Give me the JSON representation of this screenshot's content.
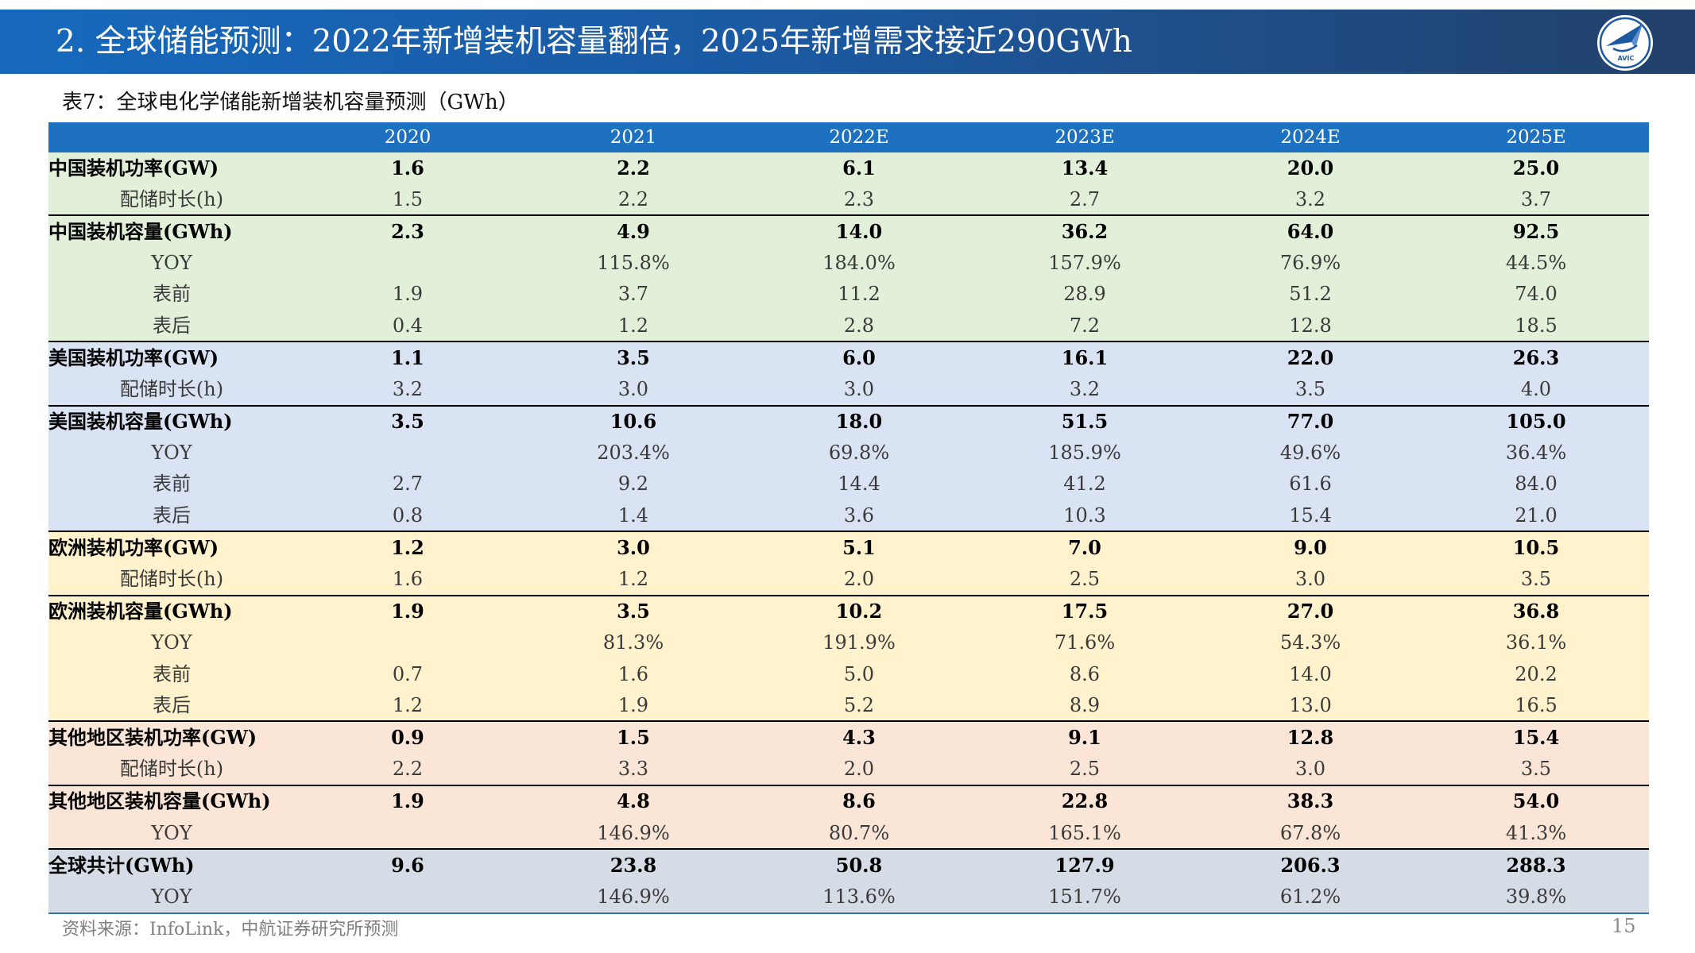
{
  "header": {
    "title": "2. 全球储能预测：2022年新增装机容量翻倍，2025年新增需求接近290GWh",
    "logo_text": "AVIC"
  },
  "caption": "表7：全球电化学储能新增装机容量预测（GWh）",
  "colors": {
    "title_bar_left": "#1669bd",
    "title_bar_right": "#22416b",
    "table_header": "#1e70c0",
    "logo": "#1b5aa3"
  },
  "table": {
    "columns": [
      "",
      "2020",
      "2021",
      "2022E",
      "2023E",
      "2024E",
      "2025E"
    ],
    "groups": [
      {
        "color": "#e2efd9",
        "rows": [
          {
            "kind": "main",
            "label": "中国装机功率(GW)",
            "values": [
              "1.6",
              "2.2",
              "6.1",
              "13.4",
              "20.0",
              "25.0"
            ]
          },
          {
            "kind": "sub",
            "label": "配储时长(h)",
            "values": [
              "1.5",
              "2.2",
              "2.3",
              "2.7",
              "3.2",
              "3.7"
            ]
          },
          {
            "kind": "main",
            "label": "中国装机容量(GWh)",
            "values": [
              "2.3",
              "4.9",
              "14.0",
              "36.2",
              "64.0",
              "92.5"
            ]
          },
          {
            "kind": "sub",
            "label": "YOY",
            "values": [
              "",
              "115.8%",
              "184.0%",
              "157.9%",
              "76.9%",
              "44.5%"
            ]
          },
          {
            "kind": "sub",
            "label": "表前",
            "values": [
              "1.9",
              "3.7",
              "11.2",
              "28.9",
              "51.2",
              "74.0"
            ]
          },
          {
            "kind": "sub",
            "label": "表后",
            "values": [
              "0.4",
              "1.2",
              "2.8",
              "7.2",
              "12.8",
              "18.5"
            ]
          }
        ]
      },
      {
        "color": "#dae3f3",
        "rows": [
          {
            "kind": "main",
            "label": "美国装机功率(GW)",
            "values": [
              "1.1",
              "3.5",
              "6.0",
              "16.1",
              "22.0",
              "26.3"
            ]
          },
          {
            "kind": "sub",
            "label": "配储时长(h)",
            "values": [
              "3.2",
              "3.0",
              "3.0",
              "3.2",
              "3.5",
              "4.0"
            ]
          },
          {
            "kind": "main",
            "label": "美国装机容量(GWh)",
            "values": [
              "3.5",
              "10.6",
              "18.0",
              "51.5",
              "77.0",
              "105.0"
            ]
          },
          {
            "kind": "sub",
            "label": "YOY",
            "values": [
              "",
              "203.4%",
              "69.8%",
              "185.9%",
              "49.6%",
              "36.4%"
            ]
          },
          {
            "kind": "sub",
            "label": "表前",
            "values": [
              "2.7",
              "9.2",
              "14.4",
              "41.2",
              "61.6",
              "84.0"
            ]
          },
          {
            "kind": "sub",
            "label": "表后",
            "values": [
              "0.8",
              "1.4",
              "3.6",
              "10.3",
              "15.4",
              "21.0"
            ]
          }
        ]
      },
      {
        "color": "#fff2cc",
        "rows": [
          {
            "kind": "main",
            "label": "欧洲装机功率(GW)",
            "values": [
              "1.2",
              "3.0",
              "5.1",
              "7.0",
              "9.0",
              "10.5"
            ]
          },
          {
            "kind": "sub",
            "label": "配储时长(h)",
            "values": [
              "1.6",
              "1.2",
              "2.0",
              "2.5",
              "3.0",
              "3.5"
            ]
          },
          {
            "kind": "main",
            "label": "欧洲装机容量(GWh)",
            "values": [
              "1.9",
              "3.5",
              "10.2",
              "17.5",
              "27.0",
              "36.8"
            ]
          },
          {
            "kind": "sub",
            "label": "YOY",
            "values": [
              "",
              "81.3%",
              "191.9%",
              "71.6%",
              "54.3%",
              "36.1%"
            ]
          },
          {
            "kind": "sub",
            "label": "表前",
            "values": [
              "0.7",
              "1.6",
              "5.0",
              "8.6",
              "14.0",
              "20.2"
            ]
          },
          {
            "kind": "sub",
            "label": "表后",
            "values": [
              "1.2",
              "1.9",
              "5.2",
              "8.9",
              "13.0",
              "16.5"
            ]
          }
        ]
      },
      {
        "color": "#fbe5d6",
        "rows": [
          {
            "kind": "main",
            "label": "其他地区装机功率(GW)",
            "values": [
              "0.9",
              "1.5",
              "4.3",
              "9.1",
              "12.8",
              "15.4"
            ]
          },
          {
            "kind": "sub",
            "label": "配储时长(h)",
            "values": [
              "2.2",
              "3.3",
              "2.0",
              "2.5",
              "3.0",
              "3.5"
            ]
          },
          {
            "kind": "main",
            "label": "其他地区装机容量(GWh)",
            "values": [
              "1.9",
              "4.8",
              "8.6",
              "22.8",
              "38.3",
              "54.0"
            ]
          },
          {
            "kind": "sub",
            "label": "YOY",
            "values": [
              "",
              "146.9%",
              "80.7%",
              "165.1%",
              "67.8%",
              "41.3%"
            ]
          }
        ]
      },
      {
        "color": "#d6dce5",
        "rows": [
          {
            "kind": "main",
            "label": "全球共计(GWh)",
            "values": [
              "9.6",
              "23.8",
              "50.8",
              "127.9",
              "206.3",
              "288.3"
            ]
          },
          {
            "kind": "sub",
            "label": "YOY",
            "values": [
              "",
              "146.9%",
              "113.6%",
              "151.7%",
              "61.2%",
              "39.8%"
            ]
          }
        ]
      }
    ]
  },
  "footer": {
    "source": "资料来源：InfoLink，中航证券研究所预测",
    "page": "15"
  }
}
